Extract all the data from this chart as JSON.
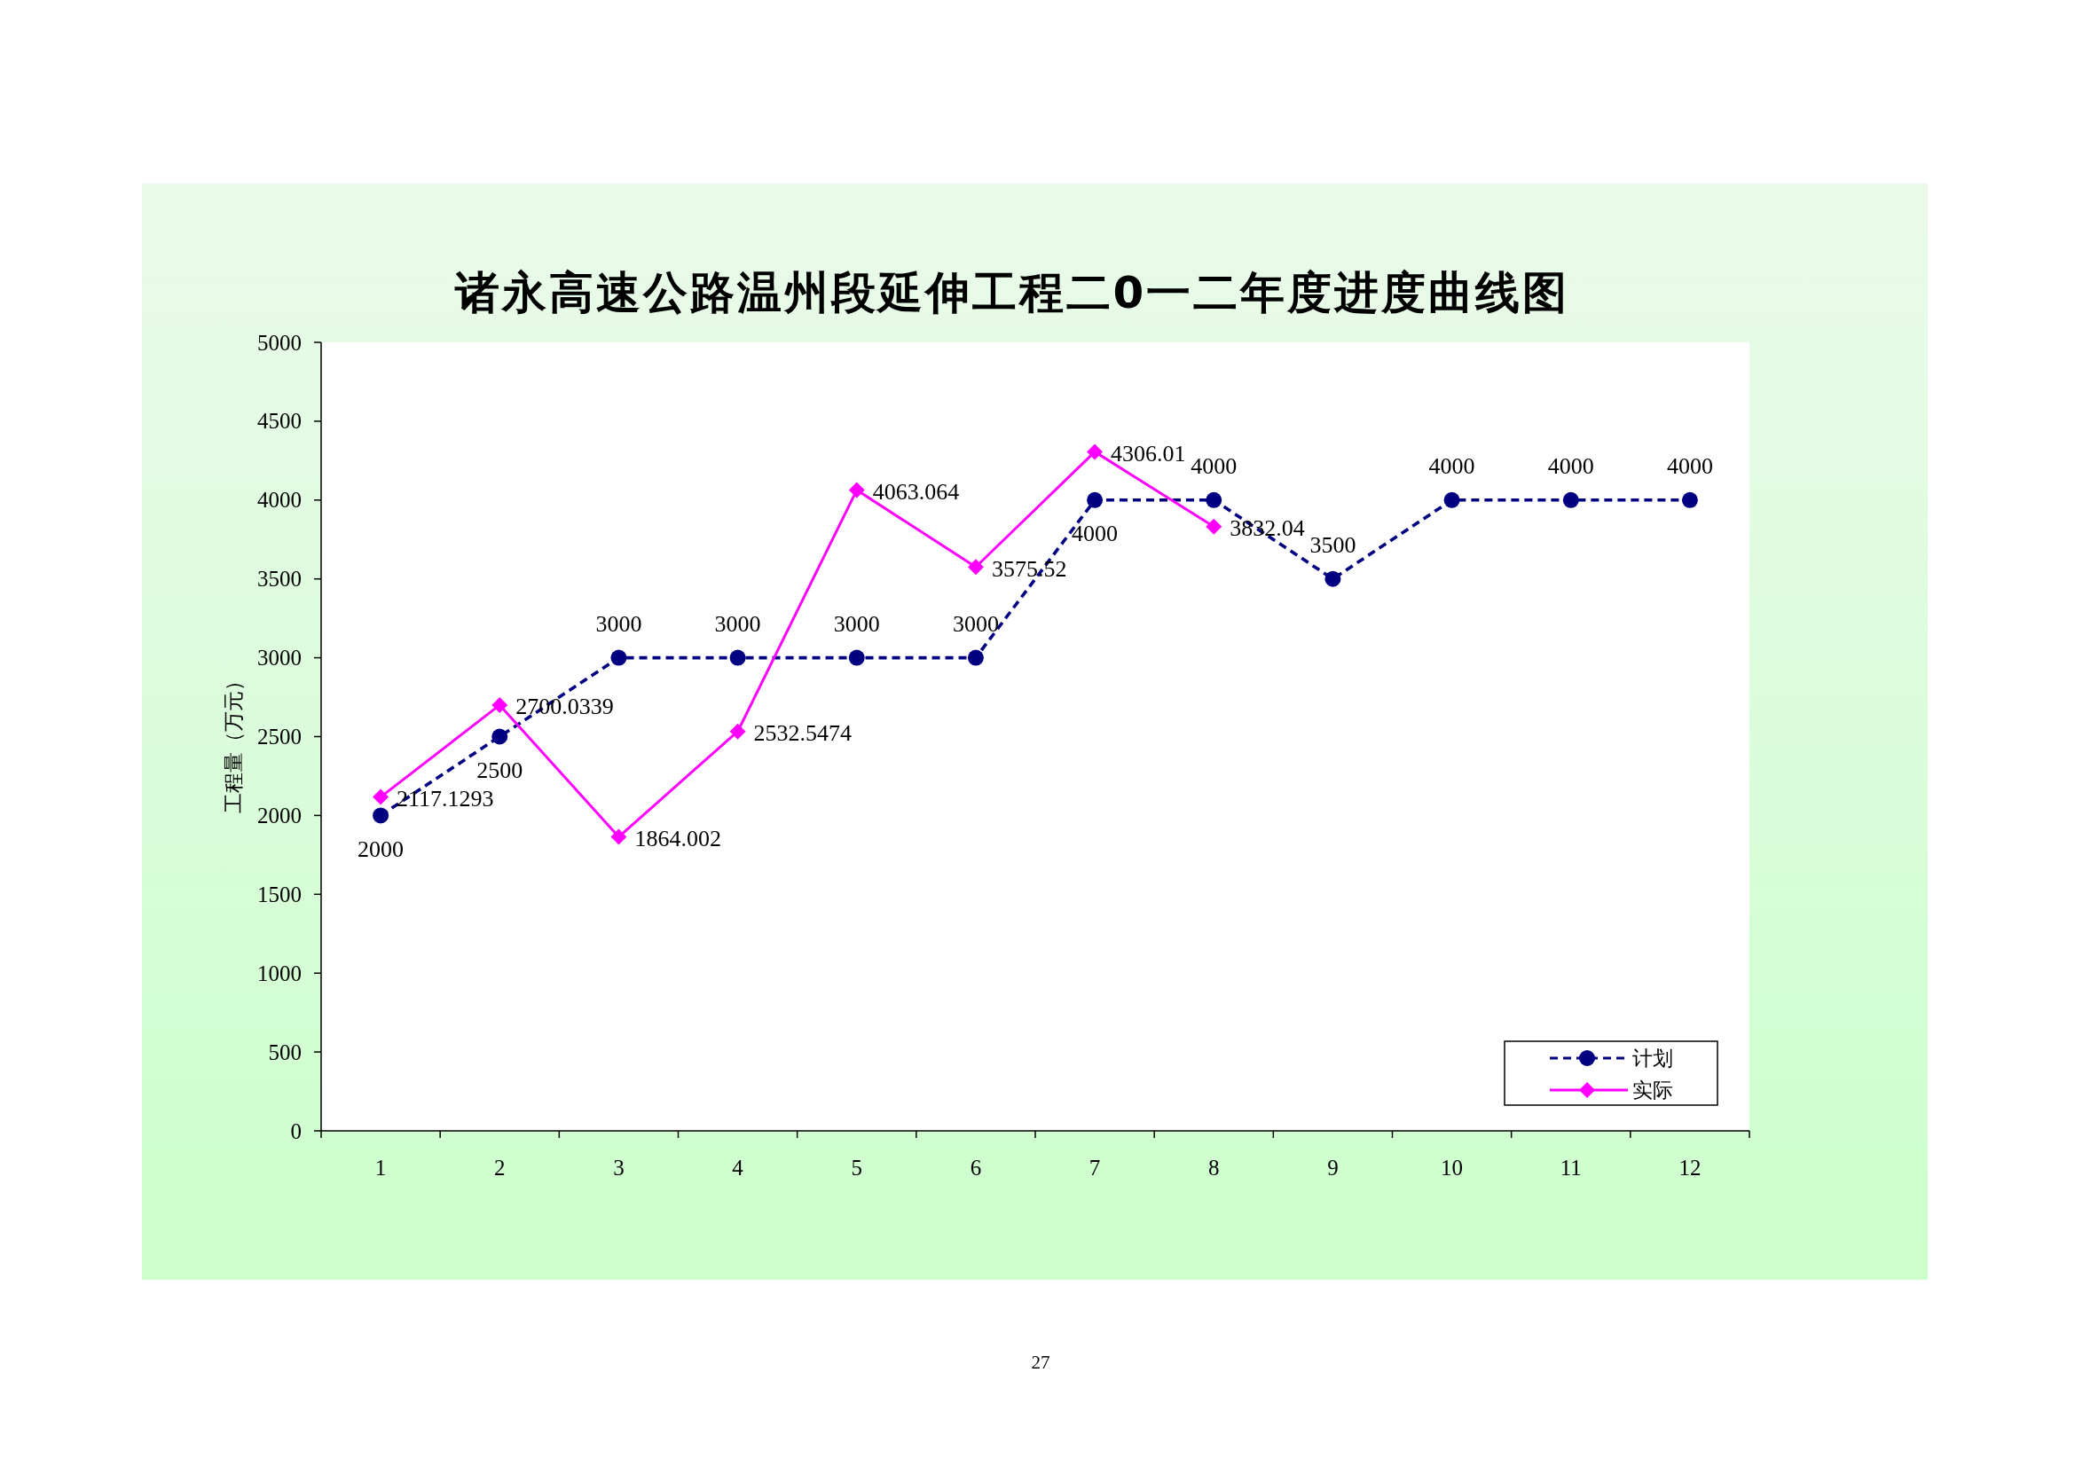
{
  "chart_data": {
    "type": "line",
    "title": "诸永高速公路温州段延伸工程二0一二年度进度曲线图",
    "ylabel": "工程量（万元）",
    "categories": [
      "1",
      "2",
      "3",
      "4",
      "5",
      "6",
      "7",
      "8",
      "9",
      "10",
      "11",
      "12"
    ],
    "series": [
      {
        "name": "计划",
        "color": "#000080",
        "marker": "circle",
        "line_style": "dashed",
        "values": [
          2000,
          2500,
          3000,
          3000,
          3000,
          3000,
          4000,
          4000,
          3500,
          4000,
          4000,
          4000
        ]
      },
      {
        "name": "实际",
        "color": "#ff00ff",
        "marker": "diamond",
        "line_style": "solid",
        "values": [
          2117.1293,
          2700.0339,
          1864.002,
          2532.5474,
          4063.064,
          3575.52,
          4306.01,
          3832.04,
          null,
          null,
          null,
          null
        ]
      }
    ],
    "ylim": [
      0,
      5000
    ],
    "yticks": [
      0,
      500,
      1000,
      1500,
      2000,
      2500,
      3000,
      3500,
      4000,
      4500,
      5000
    ],
    "legend": "bottom right",
    "data_labels": true,
    "annotations": [
      "27"
    ]
  }
}
